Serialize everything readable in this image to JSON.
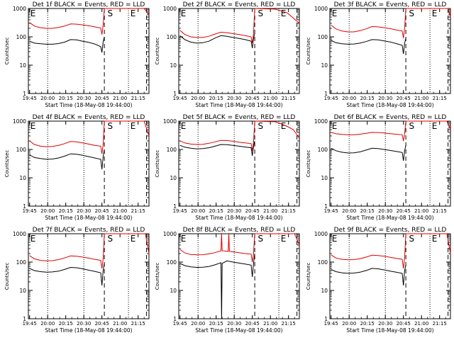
{
  "figure": {
    "background": "#ffffff",
    "colors": {
      "events": "#000000",
      "lld": "#e00000"
    }
  },
  "chart_data": [
    {
      "type": "line",
      "title": "Det 1f BLACK = Events, RED = LLD",
      "xlabel": "Start Time (18-May-08 19:44:00)",
      "ylabel": "Counts/sec",
      "yscale": "log",
      "ylim": [
        1,
        1000
      ],
      "xlim_minutes_from_start": [
        0,
        100
      ],
      "x_tick_labels": [
        "19:45",
        "20:00",
        "20:15",
        "20:30",
        "20:45",
        "21:00",
        "21:15"
      ],
      "y_tick_labels": [
        "1",
        "10",
        "100",
        "1000"
      ],
      "marker_labels": [
        "E",
        "S",
        "E"
      ],
      "series": [
        {
          "name": "Events",
          "color": "#000000",
          "x": [
            1,
            5,
            10,
            15,
            20,
            25,
            30,
            35,
            40,
            45,
            50,
            55,
            60,
            61,
            62,
            63
          ],
          "y": [
            70,
            60,
            57,
            55,
            55,
            58,
            65,
            80,
            78,
            70,
            64,
            56,
            45,
            28,
            65,
            100
          ]
        },
        {
          "name": "LLD",
          "color": "#e00000",
          "x": [
            1,
            5,
            10,
            15,
            20,
            25,
            30,
            35,
            40,
            45,
            50,
            55,
            60,
            61,
            62,
            63,
            96,
            100
          ],
          "y": [
            320,
            240,
            210,
            200,
            200,
            215,
            240,
            285,
            280,
            265,
            245,
            225,
            205,
            120,
            260,
            1000,
            1000,
            600
          ]
        }
      ]
    },
    {
      "type": "line",
      "title": "Det 2f BLACK = Events, RED = LLD",
      "xlabel": "Start Time (18-May-08 19:44:00)",
      "ylabel": "Counts/sec",
      "yscale": "log",
      "ylim": [
        1,
        1000
      ],
      "xlim_minutes_from_start": [
        0,
        100
      ],
      "x_tick_labels": [
        "19:45",
        "20:00",
        "20:15",
        "20:30",
        "20:45",
        "21:00",
        "21:15"
      ],
      "y_tick_labels": [
        "1",
        "10",
        "100",
        "1000"
      ],
      "marker_labels": [
        "E",
        "S",
        "E"
      ],
      "series": [
        {
          "name": "Events",
          "color": "#000000",
          "x": [
            1,
            5,
            10,
            15,
            20,
            25,
            30,
            35,
            40,
            45,
            50,
            55,
            60,
            61,
            62,
            63
          ],
          "y": [
            110,
            80,
            65,
            60,
            62,
            70,
            90,
            110,
            105,
            95,
            88,
            80,
            70,
            40,
            90,
            130
          ]
        },
        {
          "name": "LLD",
          "color": "#e00000",
          "x": [
            1,
            5,
            10,
            15,
            20,
            25,
            30,
            35,
            40,
            45,
            50,
            55,
            60,
            61,
            62,
            63,
            80,
            90,
            100
          ],
          "y": [
            170,
            120,
            100,
            95,
            95,
            105,
            125,
            145,
            140,
            130,
            120,
            110,
            100,
            60,
            130,
            1000,
            950,
            700,
            300
          ]
        }
      ]
    },
    {
      "type": "line",
      "title": "Det 3f BLACK = Events, RED = LLD",
      "xlabel": "Start Time (18-May-08 19:44:00)",
      "ylabel": "Counts/sec",
      "yscale": "log",
      "ylim": [
        1,
        1000
      ],
      "xlim_minutes_from_start": [
        0,
        100
      ],
      "x_tick_labels": [
        "19:45",
        "20:00",
        "20:15",
        "20:30",
        "20:45",
        "21:00",
        "21:15"
      ],
      "y_tick_labels": [
        "1",
        "10",
        "100",
        "1000"
      ],
      "marker_labels": [
        "E",
        "S",
        "E"
      ],
      "series": [
        {
          "name": "Events",
          "color": "#000000",
          "x": [
            1,
            5,
            10,
            15,
            20,
            25,
            30,
            35,
            40,
            45,
            50,
            55,
            60,
            61,
            62,
            63
          ],
          "y": [
            75,
            62,
            57,
            55,
            56,
            60,
            68,
            80,
            78,
            72,
            66,
            58,
            50,
            25,
            60,
            90
          ]
        },
        {
          "name": "LLD",
          "color": "#e00000",
          "x": [
            1,
            5,
            10,
            15,
            20,
            25,
            30,
            35,
            40,
            45,
            50,
            55,
            60,
            61,
            62,
            63,
            98,
            100
          ],
          "y": [
            260,
            190,
            160,
            150,
            150,
            165,
            190,
            230,
            225,
            210,
            195,
            175,
            160,
            90,
            200,
            1000,
            1000,
            500
          ]
        }
      ]
    },
    {
      "type": "line",
      "title": "Det 4f BLACK = Events, RED = LLD",
      "xlabel": "Start Time (18-May-08 19:44:00)",
      "ylabel": "Counts/sec",
      "yscale": "log",
      "ylim": [
        1,
        1000
      ],
      "xlim_minutes_from_start": [
        0,
        100
      ],
      "x_tick_labels": [
        "19:45",
        "20:00",
        "20:15",
        "20:30",
        "20:45",
        "21:00",
        "21:15"
      ],
      "y_tick_labels": [
        "1",
        "10",
        "100",
        "1000"
      ],
      "marker_labels": [
        "E",
        "S",
        "E"
      ],
      "series": [
        {
          "name": "Events",
          "color": "#000000",
          "x": [
            1,
            5,
            10,
            15,
            20,
            25,
            30,
            35,
            40,
            45,
            50,
            55,
            60,
            61,
            62,
            63
          ],
          "y": [
            65,
            52,
            48,
            45,
            46,
            50,
            58,
            70,
            68,
            62,
            56,
            50,
            45,
            20,
            55,
            100
          ]
        },
        {
          "name": "LLD",
          "color": "#e00000",
          "x": [
            1,
            5,
            10,
            15,
            20,
            25,
            30,
            35,
            40,
            45,
            50,
            55,
            60,
            61,
            62,
            63,
            96,
            100
          ],
          "y": [
            200,
            150,
            130,
            125,
            128,
            140,
            160,
            190,
            185,
            170,
            155,
            140,
            130,
            70,
            150,
            1000,
            1000,
            300
          ]
        }
      ]
    },
    {
      "type": "line",
      "title": "Det 5f BLACK = Events, RED = LLD",
      "xlabel": "Start Time (18-May-08 19:44:00)",
      "ylabel": "Counts/sec",
      "yscale": "log",
      "ylim": [
        1,
        1000
      ],
      "xlim_minutes_from_start": [
        0,
        100
      ],
      "x_tick_labels": [
        "19:45",
        "20:00",
        "20:15",
        "20:30",
        "20:45",
        "21:00",
        "21:15"
      ],
      "y_tick_labels": [
        "1",
        "10",
        "100",
        "1000"
      ],
      "marker_labels": [
        "E",
        "S",
        "E"
      ],
      "series": [
        {
          "name": "Events",
          "color": "#000000",
          "x": [
            1,
            5,
            10,
            15,
            20,
            25,
            30,
            35,
            40,
            45,
            50,
            55,
            60,
            61,
            62,
            63
          ],
          "y": [
            140,
            120,
            110,
            105,
            107,
            115,
            130,
            150,
            148,
            140,
            130,
            122,
            115,
            60,
            130,
            200
          ]
        },
        {
          "name": "LLD",
          "color": "#e00000",
          "x": [
            1,
            5,
            10,
            15,
            20,
            25,
            30,
            35,
            40,
            45,
            50,
            55,
            60,
            61,
            62,
            63,
            80,
            85,
            90,
            95,
            100
          ],
          "y": [
            200,
            170,
            155,
            150,
            152,
            165,
            185,
            210,
            205,
            195,
            180,
            170,
            160,
            90,
            180,
            1000,
            950,
            800,
            650,
            500,
            250
          ]
        }
      ]
    },
    {
      "type": "line",
      "title": "Det 6f BLACK = Events, RED = LLD",
      "xlabel": "Start Time (18-May-08 19:44:00)",
      "ylabel": "Counts/sec",
      "yscale": "log",
      "ylim": [
        1,
        1000
      ],
      "xlim_minutes_from_start": [
        0,
        100
      ],
      "x_tick_labels": [
        "19:45",
        "20:00",
        "20:15",
        "20:30",
        "20:45",
        "21:00",
        "21:15"
      ],
      "y_tick_labels": [
        "1",
        "10",
        "100",
        "1000"
      ],
      "marker_labels": [
        "E",
        "S",
        "E"
      ],
      "series": [
        {
          "name": "Events",
          "color": "#000000",
          "x": [
            1,
            5,
            10,
            15,
            20,
            25,
            30,
            35,
            40,
            45,
            50,
            55,
            60,
            61,
            62,
            63
          ],
          "y": [
            110,
            90,
            80,
            75,
            76,
            82,
            95,
            110,
            108,
            100,
            92,
            85,
            78,
            40,
            90,
            140
          ]
        },
        {
          "name": "LLD",
          "color": "#e00000",
          "x": [
            1,
            5,
            10,
            15,
            20,
            25,
            30,
            35,
            40,
            45,
            50,
            55,
            60,
            61,
            62,
            63,
            97,
            100
          ],
          "y": [
            400,
            360,
            340,
            330,
            330,
            345,
            370,
            400,
            395,
            380,
            360,
            345,
            330,
            200,
            360,
            1000,
            1000,
            500
          ]
        }
      ]
    },
    {
      "type": "line",
      "title": "Det 7f BLACK = Events, RED = LLD",
      "xlabel": "Start Time (18-May-08 19:44:00)",
      "ylabel": "Counts/sec",
      "yscale": "log",
      "ylim": [
        1,
        1000
      ],
      "xlim_minutes_from_start": [
        0,
        100
      ],
      "x_tick_labels": [
        "19:45",
        "20:00",
        "20:15",
        "20:30",
        "20:45",
        "21:00",
        "21:15"
      ],
      "y_tick_labels": [
        "1",
        "10",
        "100",
        "1000"
      ],
      "marker_labels": [
        "E",
        "S",
        "E"
      ],
      "series": [
        {
          "name": "Events",
          "color": "#000000",
          "x": [
            1,
            5,
            10,
            15,
            20,
            25,
            30,
            35,
            40,
            45,
            50,
            55,
            60,
            61,
            62,
            63
          ],
          "y": [
            60,
            50,
            46,
            44,
            45,
            48,
            55,
            65,
            63,
            58,
            52,
            47,
            42,
            15,
            50,
            90
          ]
        },
        {
          "name": "LLD",
          "color": "#e00000",
          "x": [
            1,
            5,
            10,
            15,
            20,
            25,
            30,
            35,
            40,
            45,
            50,
            55,
            60,
            61,
            62,
            63,
            97,
            100
          ],
          "y": [
            170,
            130,
            115,
            110,
            112,
            122,
            140,
            165,
            160,
            150,
            138,
            125,
            115,
            60,
            130,
            1000,
            1000,
            200
          ]
        }
      ]
    },
    {
      "type": "line",
      "title": "Det 8f BLACK = Events, RED = LLD",
      "xlabel": "Start Time (18-May-08 19:44:00)",
      "ylabel": "Counts/sec",
      "yscale": "log",
      "ylim": [
        1,
        1000
      ],
      "xlim_minutes_from_start": [
        0,
        100
      ],
      "x_tick_labels": [
        "19:45",
        "20:00",
        "20:15",
        "20:30",
        "20:45",
        "21:00",
        "21:15"
      ],
      "y_tick_labels": [
        "1",
        "10",
        "100",
        "1000"
      ],
      "marker_labels": [
        "E",
        "S",
        "E"
      ],
      "series": [
        {
          "name": "Events",
          "color": "#000000",
          "x": [
            1,
            5,
            10,
            15,
            20,
            25,
            30,
            35,
            35.5,
            36,
            40,
            45,
            50,
            55,
            60,
            61,
            62,
            63
          ],
          "y": [
            90,
            75,
            68,
            65,
            66,
            70,
            80,
            95,
            1,
            90,
            110,
            100,
            92,
            85,
            78,
            30,
            90,
            200
          ]
        },
        {
          "name": "LLD",
          "color": "#e00000",
          "x": [
            1,
            5,
            10,
            15,
            20,
            25,
            30,
            35,
            35.5,
            36,
            41,
            41.5,
            42,
            45,
            50,
            55,
            60,
            61,
            62,
            63,
            96,
            100
          ],
          "y": [
            280,
            210,
            185,
            180,
            182,
            195,
            215,
            250,
            1000,
            250,
            240,
            1000,
            240,
            230,
            215,
            200,
            190,
            100,
            200,
            1000,
            1000,
            400
          ]
        }
      ]
    },
    {
      "type": "line",
      "title": "Det 9f BLACK = Events, RED = LLD",
      "xlabel": "Start Time (18-May-08 19:44:00)",
      "ylabel": "Counts/sec",
      "yscale": "log",
      "ylim": [
        1,
        1000
      ],
      "xlim_minutes_from_start": [
        0,
        100
      ],
      "x_tick_labels": [
        "19:45",
        "20:00",
        "20:15",
        "20:30",
        "20:45",
        "21:00",
        "21:15"
      ],
      "y_tick_labels": [
        "1",
        "10",
        "100",
        "1000"
      ],
      "marker_labels": [
        "E",
        "S",
        "E"
      ],
      "series": [
        {
          "name": "Events",
          "color": "#000000",
          "x": [
            1,
            5,
            10,
            15,
            20,
            25,
            30,
            35,
            40,
            45,
            50,
            55,
            60,
            61,
            62,
            63
          ],
          "y": [
            55,
            46,
            42,
            40,
            41,
            44,
            50,
            60,
            58,
            53,
            48,
            44,
            40,
            15,
            50,
            80
          ]
        },
        {
          "name": "LLD",
          "color": "#e00000",
          "x": [
            1,
            5,
            10,
            15,
            20,
            25,
            30,
            35,
            40,
            45,
            50,
            55,
            60,
            61,
            62,
            63,
            97,
            100
          ],
          "y": [
            180,
            140,
            125,
            120,
            122,
            132,
            150,
            175,
            170,
            160,
            148,
            135,
            125,
            60,
            140,
            1000,
            1000,
            200
          ]
        }
      ]
    }
  ]
}
